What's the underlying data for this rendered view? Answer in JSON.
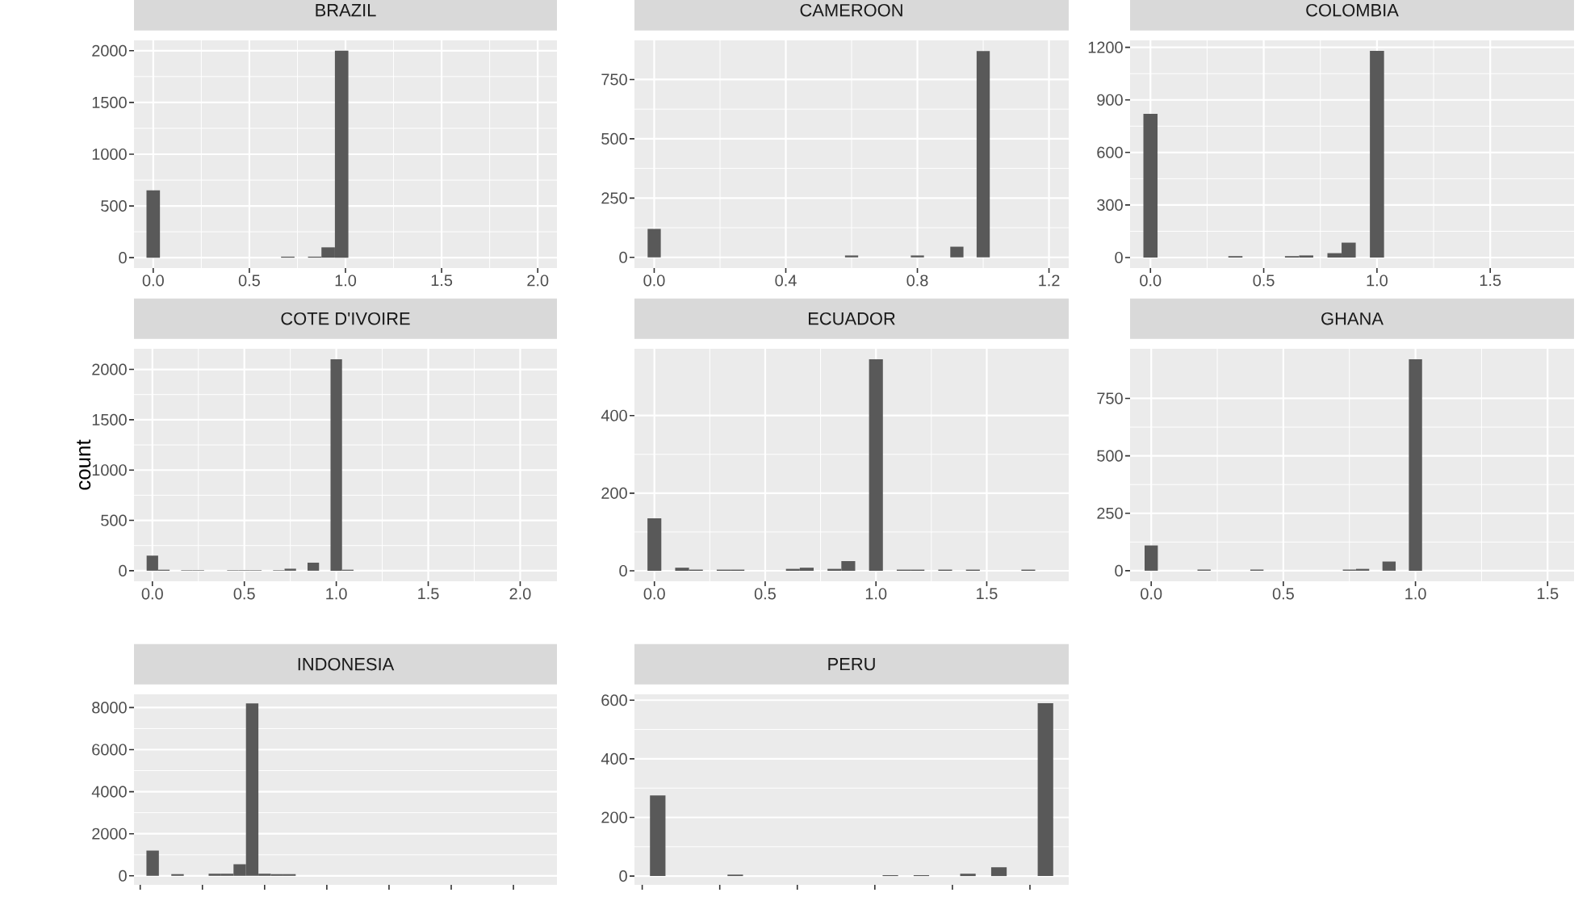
{
  "chart_data": [
    {
      "type": "histogram",
      "title": "BRAZIL",
      "color": "#595959",
      "grid": true,
      "xlim": [
        -0.1,
        2.1
      ],
      "ylim": [
        -100,
        2100
      ],
      "xticks": [
        {
          "value": 0,
          "label": "0.0"
        },
        0.5,
        {
          "value": 1,
          "label": "1.0"
        },
        1.5,
        {
          "value": 2,
          "label": "2.0"
        }
      ],
      "yticks": [
        0,
        500,
        1000,
        1500,
        2000
      ],
      "bins": [
        -0.035,
        0.035,
        0.105,
        0.175,
        0.245,
        0.315,
        0.385,
        0.455,
        0.525,
        0.595,
        0.665,
        0.735,
        0.805,
        0.875,
        0.945,
        1.015
      ],
      "values": [
        650,
        0,
        0,
        0,
        0,
        0,
        0,
        0,
        0,
        0,
        10,
        0,
        10,
        100,
        2000
      ]
    },
    {
      "type": "histogram",
      "title": "CAMEROON",
      "color": "#595959",
      "grid": true,
      "xlim": [
        -0.06,
        1.26
      ],
      "ylim": [
        -45,
        915
      ],
      "xticks": [
        {
          "value": 0,
          "label": "0.0"
        },
        0.4,
        0.8,
        1.2
      ],
      "yticks": [
        0,
        250,
        500,
        750
      ],
      "bins": [
        -0.02,
        0.02,
        0.06,
        0.1,
        0.14,
        0.18,
        0.22,
        0.26,
        0.3,
        0.34,
        0.38,
        0.42,
        0.46,
        0.5,
        0.54,
        0.58,
        0.62,
        0.66,
        0.7,
        0.74,
        0.78,
        0.82,
        0.86,
        0.9,
        0.94,
        0.98,
        1.02
      ],
      "values": [
        120,
        0,
        0,
        0,
        0,
        0,
        0,
        0,
        0,
        0,
        0,
        0,
        0,
        0,
        0,
        8,
        0,
        0,
        0,
        0,
        8,
        0,
        0,
        45,
        0,
        870
      ]
    },
    {
      "type": "histogram",
      "title": "COLOMBIA",
      "color": "#595959",
      "grid": true,
      "xlim": [
        -0.09,
        1.87
      ],
      "ylim": [
        -60,
        1240
      ],
      "xticks": [
        {
          "value": 0,
          "label": "0.0"
        },
        0.5,
        {
          "value": 1,
          "label": "1.0"
        },
        1.5
      ],
      "yticks": [
        0,
        300,
        600,
        900,
        1200
      ],
      "bins": [
        -0.03125,
        0.03125,
        0.09375,
        0.15625,
        0.21875,
        0.28125,
        0.34375,
        0.40625,
        0.46875,
        0.53125,
        0.59375,
        0.65625,
        0.71875,
        0.78125,
        0.84375,
        0.90625,
        0.96875,
        1.03125
      ],
      "values": [
        820,
        0,
        0,
        0,
        0,
        0,
        8,
        0,
        0,
        0,
        8,
        12,
        0,
        25,
        85,
        0,
        1180
      ]
    },
    {
      "type": "histogram",
      "title": "COTE D'IVOIRE",
      "ylabel": "count",
      "color": "#595959",
      "grid": true,
      "xlim": [
        -0.1,
        2.2
      ],
      "ylim": [
        -105,
        2205
      ],
      "xticks": [
        {
          "value": 0,
          "label": "0.0"
        },
        0.5,
        {
          "value": 1,
          "label": "1.0"
        },
        1.5,
        {
          "value": 2,
          "label": "2.0"
        }
      ],
      "yticks": [
        0,
        500,
        1000,
        1500,
        2000
      ],
      "bins": [
        -0.03125,
        0.03125,
        0.09375,
        0.15625,
        0.21875,
        0.28125,
        0.34375,
        0.40625,
        0.46875,
        0.53125,
        0.59375,
        0.65625,
        0.71875,
        0.78125,
        0.84375,
        0.90625,
        0.96875,
        1.03125,
        1.09375
      ],
      "values": [
        150,
        10,
        0,
        5,
        5,
        0,
        0,
        5,
        5,
        5,
        0,
        5,
        20,
        0,
        80,
        0,
        2100,
        10
      ]
    },
    {
      "type": "histogram",
      "title": "ECUADOR",
      "color": "#595959",
      "grid": true,
      "xlim": [
        -0.09,
        1.87
      ],
      "ylim": [
        -27,
        572
      ],
      "xticks": [
        {
          "value": 0,
          "label": "0.0"
        },
        0.5,
        {
          "value": 1,
          "label": "1.0"
        },
        1.5
      ],
      "yticks": [
        0,
        200,
        400
      ],
      "bins": [
        -0.03125,
        0.03125,
        0.09375,
        0.15625,
        0.21875,
        0.28125,
        0.34375,
        0.40625,
        0.46875,
        0.53125,
        0.59375,
        0.65625,
        0.71875,
        0.78125,
        0.84375,
        0.90625,
        0.96875,
        1.03125,
        1.09375,
        1.15625,
        1.21875,
        1.28125,
        1.34375,
        1.40625,
        1.46875,
        1.53125,
        1.59375,
        1.65625,
        1.71875
      ],
      "values": [
        135,
        0,
        8,
        3,
        0,
        3,
        3,
        0,
        0,
        0,
        5,
        8,
        0,
        5,
        25,
        0,
        545,
        0,
        3,
        3,
        0,
        3,
        0,
        3,
        0,
        0,
        0,
        3
      ]
    },
    {
      "type": "histogram",
      "title": "GHANA",
      "color": "#595959",
      "grid": true,
      "xlim": [
        -0.08,
        1.6
      ],
      "ylim": [
        -46,
        966
      ],
      "xticks": [
        {
          "value": 0,
          "label": "0.0"
        },
        0.5,
        {
          "value": 1,
          "label": "1.0"
        },
        1.5
      ],
      "yticks": [
        0,
        250,
        500,
        750
      ],
      "bins": [
        -0.025,
        0.025,
        0.075,
        0.125,
        0.175,
        0.225,
        0.275,
        0.325,
        0.375,
        0.425,
        0.475,
        0.525,
        0.575,
        0.625,
        0.675,
        0.725,
        0.775,
        0.825,
        0.875,
        0.925,
        0.975,
        1.025
      ],
      "values": [
        110,
        0,
        0,
        0,
        5,
        0,
        0,
        0,
        5,
        0,
        0,
        0,
        0,
        0,
        0,
        5,
        8,
        0,
        40,
        0,
        920
      ]
    },
    {
      "type": "bar",
      "title": "INDONESIA",
      "color": "#595959",
      "grid": "y",
      "tick_labels": "y",
      "ylim": [
        -430,
        8630
      ],
      "yticks": [
        0,
        2000,
        4000,
        6000,
        8000
      ],
      "categories": [
        null,
        null,
        null,
        null,
        null,
        null,
        null,
        null,
        null,
        null,
        null,
        null,
        null,
        null,
        null,
        null,
        null,
        null,
        null,
        null,
        null,
        null,
        null,
        null,
        null,
        null,
        null,
        null,
        null,
        null,
        null,
        null,
        null,
        null
      ],
      "values": [
        0,
        1200,
        0,
        80,
        0,
        0,
        100,
        100,
        550,
        8200,
        100,
        80,
        80,
        0,
        0,
        0,
        0,
        0,
        0,
        0,
        0,
        0,
        0,
        0,
        0,
        0,
        0,
        0,
        0,
        0,
        0,
        0,
        0,
        0
      ]
    },
    {
      "type": "bar",
      "title": "PERU",
      "color": "#595959",
      "grid": "y",
      "tick_labels": "y",
      "ylim": [
        -30,
        620
      ],
      "yticks": [
        0,
        200,
        400,
        600
      ],
      "categories": [
        null,
        null,
        null,
        null,
        null,
        null,
        null,
        null,
        null,
        null,
        null,
        null,
        null,
        null,
        null,
        null,
        null,
        null,
        null,
        null,
        null,
        null,
        null,
        null,
        null,
        null,
        null,
        null
      ],
      "values": [
        0,
        275,
        0,
        0,
        0,
        0,
        5,
        0,
        0,
        0,
        0,
        0,
        0,
        0,
        0,
        0,
        3,
        0,
        3,
        0,
        0,
        8,
        0,
        30,
        0,
        0,
        590,
        0
      ]
    }
  ]
}
